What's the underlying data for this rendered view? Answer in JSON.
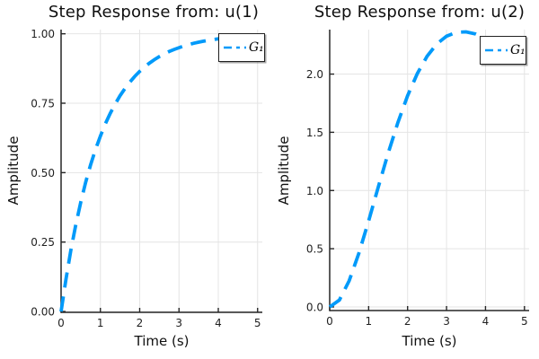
{
  "figure": {
    "background": "#ffffff",
    "accent_color": "#009AFA",
    "grid_color": "#e4e4e4",
    "axis_color": "#262626"
  },
  "chart_data": [
    {
      "type": "line",
      "title": "Step Response from: u(1)",
      "xlabel": "Time (s)",
      "ylabel": "Amplitude",
      "xlim": [
        0,
        5.12
      ],
      "ylim": [
        -0.003,
        1.015
      ],
      "xticks": [
        0,
        1,
        2,
        3,
        4,
        5
      ],
      "xtick_labels": [
        "0",
        "1",
        "2",
        "3",
        "4",
        "5"
      ],
      "yticks": [
        0,
        0.25,
        0.5,
        0.75,
        1.0
      ],
      "ytick_labels": [
        "0.00",
        "0.25",
        "0.50",
        "0.75",
        "1.00"
      ],
      "grid": true,
      "legend_position": "top-right",
      "series": [
        {
          "name": "G₁",
          "color": "#009AFA",
          "style": "dashed",
          "x": [
            0,
            0.125,
            0.25,
            0.375,
            0.5,
            0.625,
            0.75,
            0.875,
            1,
            1.125,
            1.25,
            1.375,
            1.5,
            1.625,
            1.75,
            1.875,
            2,
            2.125,
            2.25,
            2.375,
            2.5,
            2.625,
            2.75,
            2.875,
            3,
            3.125,
            3.25,
            3.375,
            3.5,
            3.625,
            3.75,
            3.875,
            4,
            4.125,
            4.25,
            4.375,
            4.5,
            4.625,
            4.75,
            4.875,
            5
          ],
          "y": [
            0,
            0.1175,
            0.2212,
            0.3127,
            0.3935,
            0.4647,
            0.5276,
            0.5831,
            0.6321,
            0.6753,
            0.7135,
            0.7472,
            0.7769,
            0.8031,
            0.8262,
            0.8466,
            0.8647,
            0.8806,
            0.8946,
            0.907,
            0.9179,
            0.9276,
            0.9361,
            0.9436,
            0.9502,
            0.9561,
            0.9612,
            0.9658,
            0.9698,
            0.9734,
            0.9765,
            0.9792,
            0.9817,
            0.9838,
            0.9857,
            0.9874,
            0.9889,
            0.9902,
            0.9913,
            0.9924,
            0.9933
          ]
        }
      ]
    },
    {
      "type": "line",
      "title": "Step Response from: u(2)",
      "xlabel": "Time (s)",
      "ylabel": "Amplitude",
      "xlim": [
        0,
        5.12
      ],
      "ylim": [
        -0.031,
        2.382
      ],
      "xticks": [
        0,
        1,
        2,
        3,
        4,
        5
      ],
      "xtick_labels": [
        "0",
        "1",
        "2",
        "3",
        "4",
        "5"
      ],
      "yticks": [
        0,
        0.5,
        1.0,
        1.5,
        2.0
      ],
      "ytick_labels": [
        "0.0",
        "0.5",
        "1.0",
        "1.5",
        "2.0"
      ],
      "grid": true,
      "legend_position": "top-right",
      "series": [
        {
          "name": "G₁",
          "color": "#009AFA",
          "style": "dashed",
          "x": [
            0,
            0.25,
            0.5,
            0.75,
            1,
            1.25,
            1.5,
            1.75,
            2,
            2.25,
            2.5,
            2.75,
            3,
            3.25,
            3.5,
            3.75,
            4,
            4.25,
            4.5,
            4.75,
            5
          ],
          "y": [
            0,
            0.059,
            0.225,
            0.462,
            0.74,
            1.033,
            1.318,
            1.583,
            1.814,
            2.005,
            2.153,
            2.259,
            2.326,
            2.359,
            2.363,
            2.344,
            2.309,
            2.262,
            2.21,
            2.156,
            2.105
          ]
        }
      ]
    }
  ]
}
